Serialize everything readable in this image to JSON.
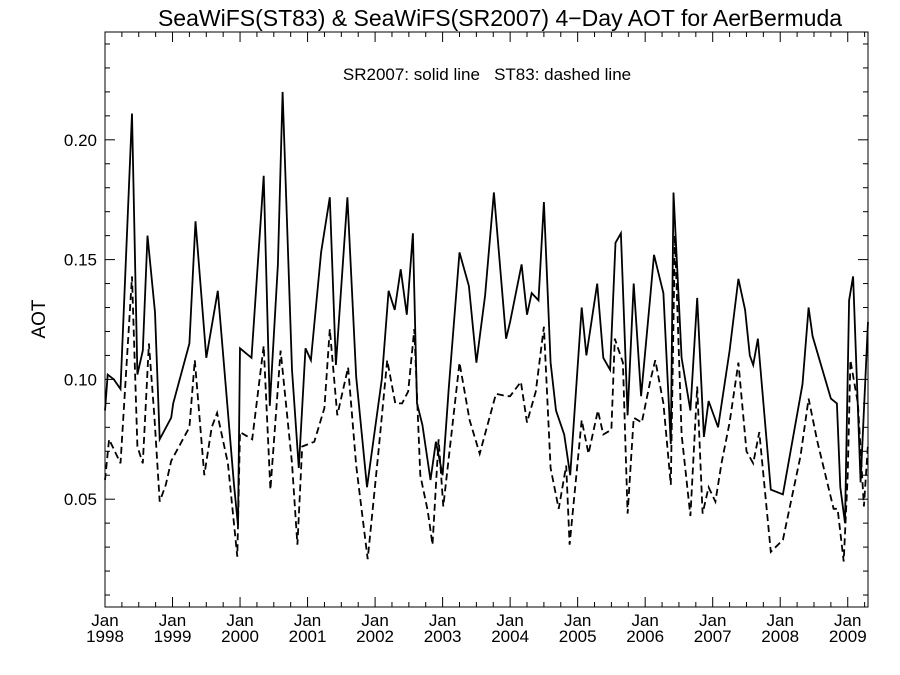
{
  "chart_data": {
    "type": "line",
    "title": "SeaWiFS(ST83) & SeaWiFS(SR2007) 4−Day AOT for AerBermuda",
    "annotation": "SR2007: solid line   ST83: dashed line",
    "ylabel": "AOT",
    "xlabel": "",
    "xlim": [
      1998.0,
      2009.3
    ],
    "ylim": [
      0.005,
      0.245
    ],
    "y_ticks": [
      0.05,
      0.1,
      0.15,
      0.2
    ],
    "y_tick_labels": [
      "0.05",
      "0.10",
      "0.15",
      "0.20"
    ],
    "x_ticks": [
      {
        "t": 1998,
        "month": "Jan",
        "year": "1998"
      },
      {
        "t": 1999,
        "month": "Jan",
        "year": "1999"
      },
      {
        "t": 2000,
        "month": "Jan",
        "year": "2000"
      },
      {
        "t": 2001,
        "month": "Jan",
        "year": "2001"
      },
      {
        "t": 2002,
        "month": "Jan",
        "year": "2002"
      },
      {
        "t": 2003,
        "month": "Jan",
        "year": "2003"
      },
      {
        "t": 2004,
        "month": "Jan",
        "year": "2004"
      },
      {
        "t": 2005,
        "month": "Jan",
        "year": "2005"
      },
      {
        "t": 2006,
        "month": "Jan",
        "year": "2006"
      },
      {
        "t": 2007,
        "month": "Jan",
        "year": "2007"
      },
      {
        "t": 2008,
        "month": "Jan",
        "year": "2008"
      },
      {
        "t": 2009,
        "month": "Jan",
        "year": "2009"
      }
    ],
    "grid": false,
    "series": [
      {
        "name": "SR2007",
        "style": "solid",
        "color": "#000000",
        "points": [
          [
            1998.0,
            0.087
          ],
          [
            1998.04,
            0.102
          ],
          [
            1998.13,
            0.1
          ],
          [
            1998.23,
            0.096
          ],
          [
            1998.4,
            0.211
          ],
          [
            1998.48,
            0.102
          ],
          [
            1998.56,
            0.112
          ],
          [
            1998.63,
            0.16
          ],
          [
            1998.74,
            0.128
          ],
          [
            1998.81,
            0.075
          ],
          [
            1998.98,
            0.084
          ],
          [
            1999.01,
            0.09
          ],
          [
            1999.25,
            0.115
          ],
          [
            1999.34,
            0.166
          ],
          [
            1999.5,
            0.109
          ],
          [
            1999.67,
            0.137
          ],
          [
            1999.91,
            0.056
          ],
          [
            1999.97,
            0.039
          ],
          [
            2000.0,
            0.113
          ],
          [
            2000.17,
            0.109
          ],
          [
            2000.35,
            0.185
          ],
          [
            2000.44,
            0.089
          ],
          [
            2000.56,
            0.148
          ],
          [
            2000.63,
            0.22
          ],
          [
            2000.77,
            0.104
          ],
          [
            2000.87,
            0.063
          ],
          [
            2000.97,
            0.113
          ],
          [
            2001.05,
            0.108
          ],
          [
            2001.2,
            0.153
          ],
          [
            2001.33,
            0.176
          ],
          [
            2001.42,
            0.106
          ],
          [
            2001.59,
            0.176
          ],
          [
            2001.72,
            0.101
          ],
          [
            2001.88,
            0.055
          ],
          [
            2002.1,
            0.1
          ],
          [
            2002.2,
            0.137
          ],
          [
            2002.29,
            0.129
          ],
          [
            2002.38,
            0.146
          ],
          [
            2002.47,
            0.127
          ],
          [
            2002.56,
            0.161
          ],
          [
            2002.62,
            0.09
          ],
          [
            2002.7,
            0.081
          ],
          [
            2002.82,
            0.058
          ],
          [
            2002.9,
            0.074
          ],
          [
            2003.0,
            0.06
          ],
          [
            2003.09,
            0.096
          ],
          [
            2003.25,
            0.153
          ],
          [
            2003.39,
            0.139
          ],
          [
            2003.5,
            0.107
          ],
          [
            2003.63,
            0.135
          ],
          [
            2003.76,
            0.178
          ],
          [
            2003.94,
            0.117
          ],
          [
            2004.0,
            0.124
          ],
          [
            2004.17,
            0.148
          ],
          [
            2004.25,
            0.127
          ],
          [
            2004.32,
            0.136
          ],
          [
            2004.42,
            0.133
          ],
          [
            2004.5,
            0.174
          ],
          [
            2004.6,
            0.107
          ],
          [
            2004.68,
            0.087
          ],
          [
            2004.8,
            0.077
          ],
          [
            2004.89,
            0.06
          ],
          [
            2005.06,
            0.13
          ],
          [
            2005.13,
            0.11
          ],
          [
            2005.29,
            0.14
          ],
          [
            2005.38,
            0.109
          ],
          [
            2005.48,
            0.104
          ],
          [
            2005.56,
            0.157
          ],
          [
            2005.64,
            0.161
          ],
          [
            2005.74,
            0.085
          ],
          [
            2005.83,
            0.14
          ],
          [
            2005.94,
            0.093
          ],
          [
            2006.08,
            0.136
          ],
          [
            2006.13,
            0.152
          ],
          [
            2006.27,
            0.136
          ],
          [
            2006.38,
            0.073
          ],
          [
            2006.42,
            0.178
          ],
          [
            2006.54,
            0.109
          ],
          [
            2006.67,
            0.087
          ],
          [
            2006.77,
            0.134
          ],
          [
            2006.87,
            0.076
          ],
          [
            2006.94,
            0.091
          ],
          [
            2007.08,
            0.08
          ],
          [
            2007.25,
            0.112
          ],
          [
            2007.38,
            0.142
          ],
          [
            2007.48,
            0.129
          ],
          [
            2007.55,
            0.11
          ],
          [
            2007.6,
            0.106
          ],
          [
            2007.67,
            0.117
          ],
          [
            2007.86,
            0.054
          ],
          [
            2008.04,
            0.052
          ],
          [
            2008.33,
            0.098
          ],
          [
            2008.42,
            0.13
          ],
          [
            2008.48,
            0.118
          ],
          [
            2008.75,
            0.092
          ],
          [
            2008.84,
            0.09
          ],
          [
            2008.89,
            0.055
          ],
          [
            2008.96,
            0.04
          ],
          [
            2009.02,
            0.133
          ],
          [
            2009.08,
            0.143
          ],
          [
            2009.19,
            0.057
          ],
          [
            2009.3,
            0.124
          ]
        ]
      },
      {
        "name": "ST83",
        "style": "dashed",
        "color": "#000000",
        "points": [
          [
            1998.0,
            0.058
          ],
          [
            1998.06,
            0.075
          ],
          [
            1998.23,
            0.065
          ],
          [
            1998.4,
            0.143
          ],
          [
            1998.48,
            0.072
          ],
          [
            1998.56,
            0.065
          ],
          [
            1998.65,
            0.115
          ],
          [
            1998.73,
            0.085
          ],
          [
            1998.81,
            0.049
          ],
          [
            1998.9,
            0.056
          ],
          [
            1998.98,
            0.066
          ],
          [
            1999.25,
            0.08
          ],
          [
            1999.33,
            0.108
          ],
          [
            1999.47,
            0.06
          ],
          [
            1999.58,
            0.08
          ],
          [
            1999.66,
            0.086
          ],
          [
            1999.82,
            0.065
          ],
          [
            1999.96,
            0.026
          ],
          [
            2000.0,
            0.078
          ],
          [
            2000.18,
            0.075
          ],
          [
            2000.35,
            0.114
          ],
          [
            2000.45,
            0.054
          ],
          [
            2000.6,
            0.112
          ],
          [
            2000.77,
            0.065
          ],
          [
            2000.85,
            0.031
          ],
          [
            2000.92,
            0.072
          ],
          [
            2001.1,
            0.074
          ],
          [
            2001.25,
            0.088
          ],
          [
            2001.33,
            0.121
          ],
          [
            2001.44,
            0.085
          ],
          [
            2001.6,
            0.105
          ],
          [
            2001.72,
            0.064
          ],
          [
            2001.89,
            0.025
          ],
          [
            2002.05,
            0.07
          ],
          [
            2002.18,
            0.108
          ],
          [
            2002.3,
            0.09
          ],
          [
            2002.4,
            0.09
          ],
          [
            2002.49,
            0.095
          ],
          [
            2002.58,
            0.121
          ],
          [
            2002.67,
            0.06
          ],
          [
            2002.78,
            0.045
          ],
          [
            2002.85,
            0.031
          ],
          [
            2002.94,
            0.075
          ],
          [
            2003.01,
            0.047
          ],
          [
            2003.25,
            0.107
          ],
          [
            2003.4,
            0.083
          ],
          [
            2003.55,
            0.069
          ],
          [
            2003.79,
            0.094
          ],
          [
            2003.95,
            0.093
          ],
          [
            2004.0,
            0.093
          ],
          [
            2004.16,
            0.099
          ],
          [
            2004.25,
            0.082
          ],
          [
            2004.38,
            0.095
          ],
          [
            2004.5,
            0.122
          ],
          [
            2004.6,
            0.063
          ],
          [
            2004.72,
            0.046
          ],
          [
            2004.83,
            0.064
          ],
          [
            2004.88,
            0.031
          ],
          [
            2005.06,
            0.083
          ],
          [
            2005.16,
            0.069
          ],
          [
            2005.3,
            0.087
          ],
          [
            2005.38,
            0.077
          ],
          [
            2005.5,
            0.079
          ],
          [
            2005.55,
            0.117
          ],
          [
            2005.67,
            0.107
          ],
          [
            2005.74,
            0.044
          ],
          [
            2005.83,
            0.084
          ],
          [
            2005.95,
            0.082
          ],
          [
            2006.08,
            0.1
          ],
          [
            2006.15,
            0.108
          ],
          [
            2006.27,
            0.09
          ],
          [
            2006.38,
            0.056
          ],
          [
            2006.44,
            0.16
          ],
          [
            2006.54,
            0.077
          ],
          [
            2006.67,
            0.043
          ],
          [
            2006.77,
            0.097
          ],
          [
            2006.85,
            0.044
          ],
          [
            2006.94,
            0.055
          ],
          [
            2007.04,
            0.049
          ],
          [
            2007.13,
            0.065
          ],
          [
            2007.25,
            0.082
          ],
          [
            2007.38,
            0.107
          ],
          [
            2007.5,
            0.07
          ],
          [
            2007.6,
            0.065
          ],
          [
            2007.69,
            0.078
          ],
          [
            2007.86,
            0.028
          ],
          [
            2008.04,
            0.033
          ],
          [
            2008.3,
            0.068
          ],
          [
            2008.42,
            0.092
          ],
          [
            2008.55,
            0.074
          ],
          [
            2008.79,
            0.046
          ],
          [
            2008.85,
            0.046
          ],
          [
            2008.94,
            0.024
          ],
          [
            2009.0,
            0.06
          ],
          [
            2009.04,
            0.108
          ],
          [
            2009.15,
            0.09
          ],
          [
            2009.24,
            0.047
          ],
          [
            2009.3,
            0.073
          ]
        ]
      }
    ]
  }
}
